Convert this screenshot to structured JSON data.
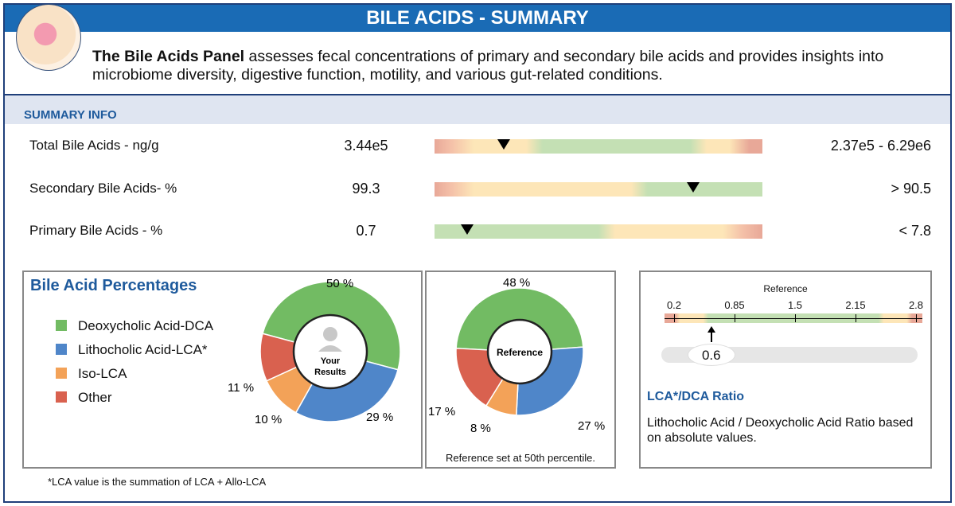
{
  "header": {
    "title": "BILE ACIDS - SUMMARY",
    "logo": "liver-anatomy-illustration"
  },
  "intro": {
    "bold": "The Bile Acids Panel",
    "text": " assesses fecal concentrations of primary and secondary bile acids and provides insights into microbiome diversity, digestive function, motility, and various gut-related conditions."
  },
  "summary": {
    "title": "SUMMARY INFO",
    "rows": [
      {
        "label": "Total Bile Acids - ng/g",
        "value": "3.44e5",
        "range": "2.37e5 - 6.29e6",
        "marker_pct": 21,
        "gradient": "linear-gradient(90deg,#e8a898 0%,#f4c0a8 5%,#fde6b8 12%,#fde6b8 28%,#c4e0b4 33%,#c4e0b4 78%,#fde6b8 83%,#fde6b8 90%,#e8a898 96%)"
      },
      {
        "label": "Secondary Bile Acids- %",
        "value": "99.3",
        "range": "> 90.5",
        "marker_pct": 79,
        "gradient": "linear-gradient(90deg,#e8a898 0%,#f4c0a8 5%,#fde6b8 12%,#fde6b8 60%,#c4e0b4 65%,#c4e0b4 100%)"
      },
      {
        "label": "Primary Bile Acids - %",
        "value": "0.7",
        "range": "< 7.8",
        "marker_pct": 10,
        "gradient": "linear-gradient(90deg,#c4e0b4 0%,#c4e0b4 50%,#fde6b8 55%,#fde6b8 88%,#f4c0a8 94%,#e8a898 100%)"
      }
    ]
  },
  "percentages": {
    "title": "Bile Acid Percentages",
    "legend": [
      {
        "label": "Deoxycholic Acid-DCA",
        "color": "#72bb63"
      },
      {
        "label": "Lithocholic Acid-LCA*",
        "color": "#4f86c9"
      },
      {
        "label": "Iso-LCA",
        "color": "#f3a258"
      },
      {
        "label": "Other",
        "color": "#d9614f"
      }
    ],
    "yours": {
      "center_label_1": "Your",
      "center_label_2": "Results",
      "values": [
        50,
        29,
        10,
        11
      ],
      "labels": [
        "50 %",
        "29 %",
        "10 %",
        "11 %"
      ]
    },
    "reference": {
      "center_label": "Reference",
      "values": [
        48,
        27,
        8,
        17
      ],
      "labels": [
        "48 %",
        "27 %",
        "8 %",
        "17 %"
      ],
      "note": "Reference set at 50th percentile."
    },
    "footnote": "*LCA value is the summation of LCA + Allo-LCA"
  },
  "ratio": {
    "scale_title": "Reference",
    "ticks": [
      "0.2",
      "0.85",
      "1.5",
      "2.15",
      "2.8"
    ],
    "value": "0.6",
    "value_num": 0.6,
    "title": "LCA*/DCA Ratio",
    "description": "Lithocholic Acid / Deoxycholic Acid Ratio based on absolute values."
  }
}
